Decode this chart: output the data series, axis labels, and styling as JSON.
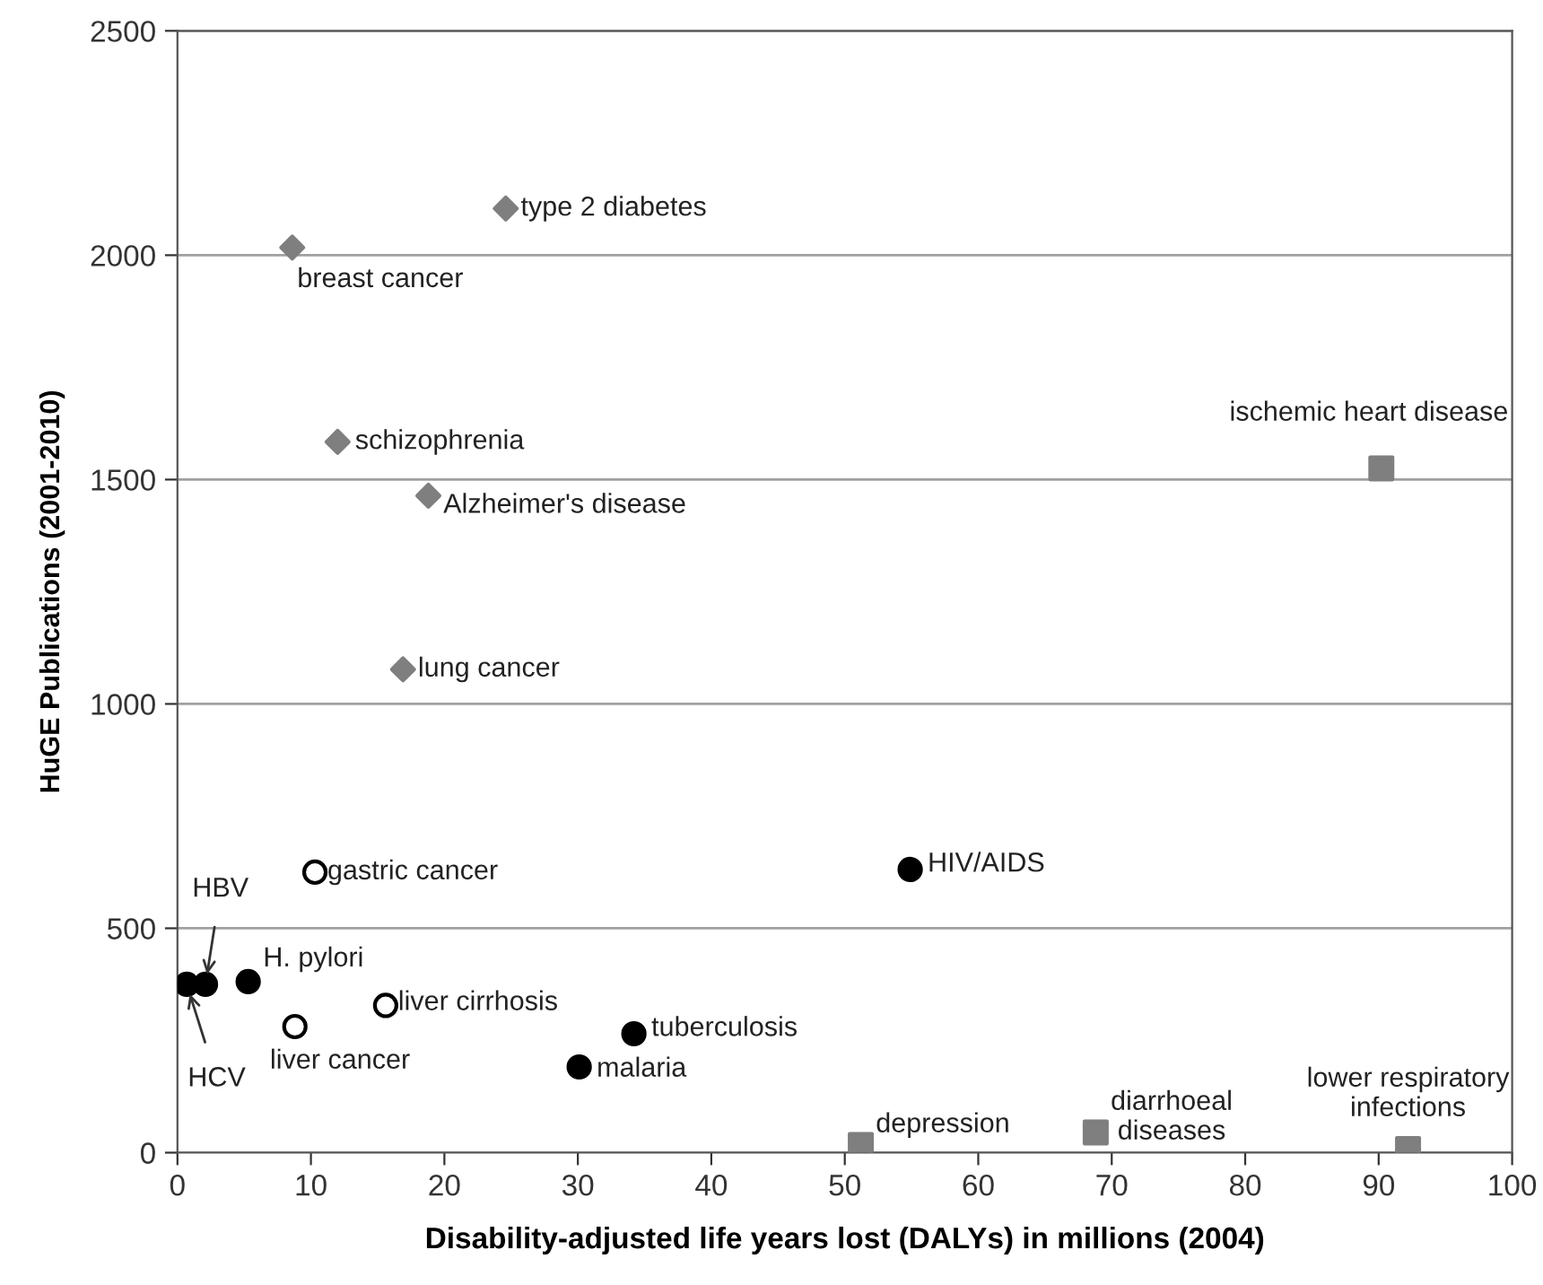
{
  "chart_data": {
    "type": "scatter",
    "xlabel": "Disability-adjusted life years lost (DALYs) in millions (2004)",
    "ylabel": "HuGE Publications (2001-2010)",
    "series": [
      {
        "color": "#7f7f7f",
        "marker": "diamond",
        "x": [
          24.6,
          8.6,
          12.0,
          18.8,
          16.9
        ],
        "values": [
          2104,
          2017,
          1584,
          1464,
          1077
        ]
      },
      {
        "color": "#7f7f7f",
        "marker": "square",
        "x": [
          90.2,
          51.2,
          68.8,
          92.2
        ],
        "values": [
          1525,
          17,
          45,
          8
        ]
      },
      {
        "color": "#000000",
        "marker": "circle",
        "x": [
          0.7,
          2.1,
          5.3,
          34.2,
          30.1,
          54.9
        ],
        "values": [
          375,
          375,
          381,
          265,
          191,
          631
        ]
      },
      {
        "color": "#ffffff",
        "marker": "circle",
        "x": [
          8.8,
          15.6,
          10.3
        ],
        "values": [
          281,
          328,
          625
        ]
      }
    ],
    "annotations": [
      {
        "text": "type 2 diabetes",
        "x": 24.6,
        "y": 2104
      },
      {
        "text": "breast cancer",
        "x": 8.6,
        "y": 2017
      },
      {
        "text": "schizophrenia",
        "x": 12.0,
        "y": 1584
      },
      {
        "text": "Alzheimer's disease",
        "x": 18.8,
        "y": 1464
      },
      {
        "text": "lung cancer",
        "x": 16.9,
        "y": 1077
      },
      {
        "text": "ischemic heart disease",
        "x": 90.2,
        "y": 1525
      },
      {
        "text": "depression",
        "x": 51.2,
        "y": 17
      },
      {
        "text": "diarrhoeal\ndiseases",
        "x": 68.8,
        "y": 45
      },
      {
        "text": "lower respiratory\ninfections",
        "x": 92.2,
        "y": 8
      },
      {
        "text": "HCV",
        "x": 0.7,
        "y": 375
      },
      {
        "text": "HBV",
        "x": 2.1,
        "y": 375
      },
      {
        "text": "H. pylori",
        "x": 5.3,
        "y": 381
      },
      {
        "text": "tuberculosis",
        "x": 34.2,
        "y": 265
      },
      {
        "text": "malaria",
        "x": 30.1,
        "y": 191
      },
      {
        "text": "HIV/AIDS",
        "x": 54.9,
        "y": 631
      },
      {
        "text": "liver cancer",
        "x": 8.8,
        "y": 281
      },
      {
        "text": "liver cirrhosis",
        "x": 15.6,
        "y": 328
      },
      {
        "text": "gastric cancer",
        "x": 10.3,
        "y": 625
      }
    ],
    "xlim": [
      0,
      100
    ],
    "xticks": [
      0,
      10,
      20,
      30,
      40,
      50,
      60,
      70,
      80,
      90,
      100
    ],
    "ylim": [
      0,
      2500
    ],
    "yticks": [
      0,
      500,
      1000,
      1500,
      2000,
      2500
    ],
    "grid": "y"
  }
}
